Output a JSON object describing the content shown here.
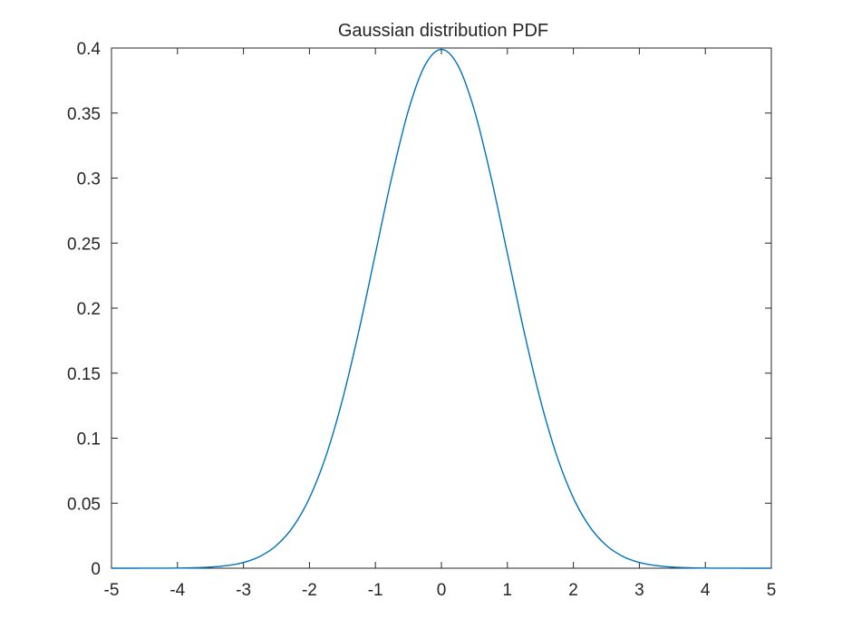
{
  "chart_data": {
    "type": "line",
    "title": "Gaussian distribution PDF",
    "xlabel": "",
    "ylabel": "",
    "xlim": [
      -5,
      5
    ],
    "ylim": [
      0,
      0.4
    ],
    "x_ticks": [
      "-5",
      "-4",
      "-3",
      "-2",
      "-1",
      "0",
      "1",
      "2",
      "3",
      "4",
      "5"
    ],
    "y_ticks": [
      "0",
      "0.05",
      "0.1",
      "0.15",
      "0.2",
      "0.25",
      "0.3",
      "0.35",
      "0.4"
    ],
    "grid": false,
    "legend": "none",
    "series": [
      {
        "color": "#0072BD",
        "x": [
          -5,
          -4.75,
          -4.5,
          -4.25,
          -4,
          -3.75,
          -3.5,
          -3.25,
          -3,
          -2.75,
          -2.5,
          -2.25,
          -2,
          -1.75,
          -1.5,
          -1.25,
          -1,
          -0.75,
          -0.5,
          -0.25,
          0,
          0.25,
          0.5,
          0.75,
          1,
          1.25,
          1.5,
          1.75,
          2,
          2.25,
          2.5,
          2.75,
          3,
          3.25,
          3.5,
          3.75,
          4,
          4.25,
          4.5,
          4.75,
          5
        ],
        "y": [
          1.5e-06,
          5.1e-06,
          1.6e-05,
          4.54e-05,
          0.0001338,
          0.000353,
          0.000873,
          0.002029,
          0.004432,
          0.009094,
          0.017528,
          0.03174,
          0.053991,
          0.086277,
          0.129518,
          0.182649,
          0.241971,
          0.301137,
          0.352065,
          0.386668,
          0.398942,
          0.386668,
          0.352065,
          0.301137,
          0.241971,
          0.182649,
          0.129518,
          0.086277,
          0.053991,
          0.03174,
          0.017528,
          0.009094,
          0.004432,
          0.002029,
          0.000873,
          0.000353,
          0.0001338,
          4.54e-05,
          1.6e-05,
          5.1e-06,
          1.5e-06
        ]
      }
    ]
  }
}
